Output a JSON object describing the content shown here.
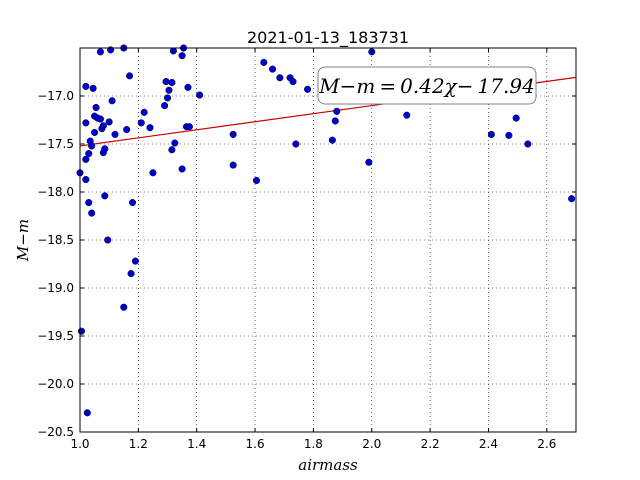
{
  "chart_data": {
    "type": "scatter",
    "title": "2021-01-13_183731",
    "xlabel": "airmass",
    "ylabel": "M−m",
    "xlim": [
      1.0,
      2.7
    ],
    "ylim": [
      -20.5,
      -16.5
    ],
    "y_inverted": true,
    "grid": true,
    "xticks": [
      "1.0",
      "1.2",
      "1.4",
      "1.6",
      "1.8",
      "2.0",
      "2.2",
      "2.4",
      "2.6"
    ],
    "xtick_values": [
      1.0,
      1.2,
      1.4,
      1.6,
      1.8,
      2.0,
      2.2,
      2.4,
      2.6
    ],
    "yticks": [
      "−17.0",
      "−17.5",
      "−18.0",
      "−18.5",
      "−19.0",
      "−19.5",
      "−20.0",
      "−20.5"
    ],
    "ytick_values": [
      -17.0,
      -17.5,
      -18.0,
      -18.5,
      -19.0,
      -19.5,
      -20.0,
      -20.5
    ],
    "marker_color": "#0000cc",
    "fit_color": "#cc0000",
    "fit": {
      "slope": 0.42,
      "intercept": -17.94,
      "x_range": [
        1.0,
        2.7
      ],
      "label": "M−m = 0.42χ− 17.94"
    },
    "series": [
      {
        "points": [
          [
            1.0,
            -17.8
          ],
          [
            1.005,
            -19.45
          ],
          [
            1.02,
            -16.9
          ],
          [
            1.02,
            -17.28
          ],
          [
            1.02,
            -17.66
          ],
          [
            1.02,
            -17.87
          ],
          [
            1.025,
            -20.3
          ],
          [
            1.03,
            -17.6
          ],
          [
            1.03,
            -18.11
          ],
          [
            1.035,
            -17.47
          ],
          [
            1.04,
            -17.52
          ],
          [
            1.04,
            -18.22
          ],
          [
            1.045,
            -16.92
          ],
          [
            1.05,
            -17.21
          ],
          [
            1.05,
            -17.38
          ],
          [
            1.055,
            -17.12
          ],
          [
            1.06,
            -17.23
          ],
          [
            1.07,
            -16.54
          ],
          [
            1.07,
            -17.24
          ],
          [
            1.075,
            -17.34
          ],
          [
            1.08,
            -17.31
          ],
          [
            1.08,
            -17.59
          ],
          [
            1.085,
            -17.55
          ],
          [
            1.085,
            -18.04
          ],
          [
            1.095,
            -18.5
          ],
          [
            1.1,
            -17.27
          ],
          [
            1.105,
            -16.52
          ],
          [
            1.11,
            -17.05
          ],
          [
            1.12,
            -17.4
          ],
          [
            1.15,
            -16.5
          ],
          [
            1.15,
            -19.2
          ],
          [
            1.16,
            -17.35
          ],
          [
            1.17,
            -16.79
          ],
          [
            1.175,
            -18.85
          ],
          [
            1.18,
            -18.11
          ],
          [
            1.19,
            -18.72
          ],
          [
            1.21,
            -17.28
          ],
          [
            1.22,
            -17.17
          ],
          [
            1.24,
            -17.33
          ],
          [
            1.25,
            -17.8
          ],
          [
            1.29,
            -17.1
          ],
          [
            1.295,
            -16.85
          ],
          [
            1.3,
            -17.02
          ],
          [
            1.305,
            -16.94
          ],
          [
            1.315,
            -16.86
          ],
          [
            1.315,
            -17.56
          ],
          [
            1.32,
            -16.53
          ],
          [
            1.325,
            -17.49
          ],
          [
            1.35,
            -16.58
          ],
          [
            1.35,
            -17.76
          ],
          [
            1.355,
            -16.5
          ],
          [
            1.365,
            -17.32
          ],
          [
            1.37,
            -16.91
          ],
          [
            1.375,
            -17.32
          ],
          [
            1.41,
            -16.99
          ],
          [
            1.525,
            -17.4
          ],
          [
            1.525,
            -17.72
          ],
          [
            1.605,
            -17.88
          ],
          [
            1.63,
            -16.65
          ],
          [
            1.66,
            -16.72
          ],
          [
            1.685,
            -16.81
          ],
          [
            1.72,
            -16.81
          ],
          [
            1.73,
            -16.85
          ],
          [
            1.74,
            -17.5
          ],
          [
            1.78,
            -16.93
          ],
          [
            1.865,
            -17.46
          ],
          [
            1.875,
            -17.26
          ],
          [
            1.88,
            -17.16
          ],
          [
            1.99,
            -17.69
          ],
          [
            2.0,
            -16.54
          ],
          [
            2.12,
            -17.2
          ],
          [
            2.41,
            -17.4
          ],
          [
            2.47,
            -17.41
          ],
          [
            2.495,
            -17.23
          ],
          [
            2.535,
            -17.5
          ],
          [
            2.685,
            -18.07
          ]
        ]
      }
    ]
  }
}
